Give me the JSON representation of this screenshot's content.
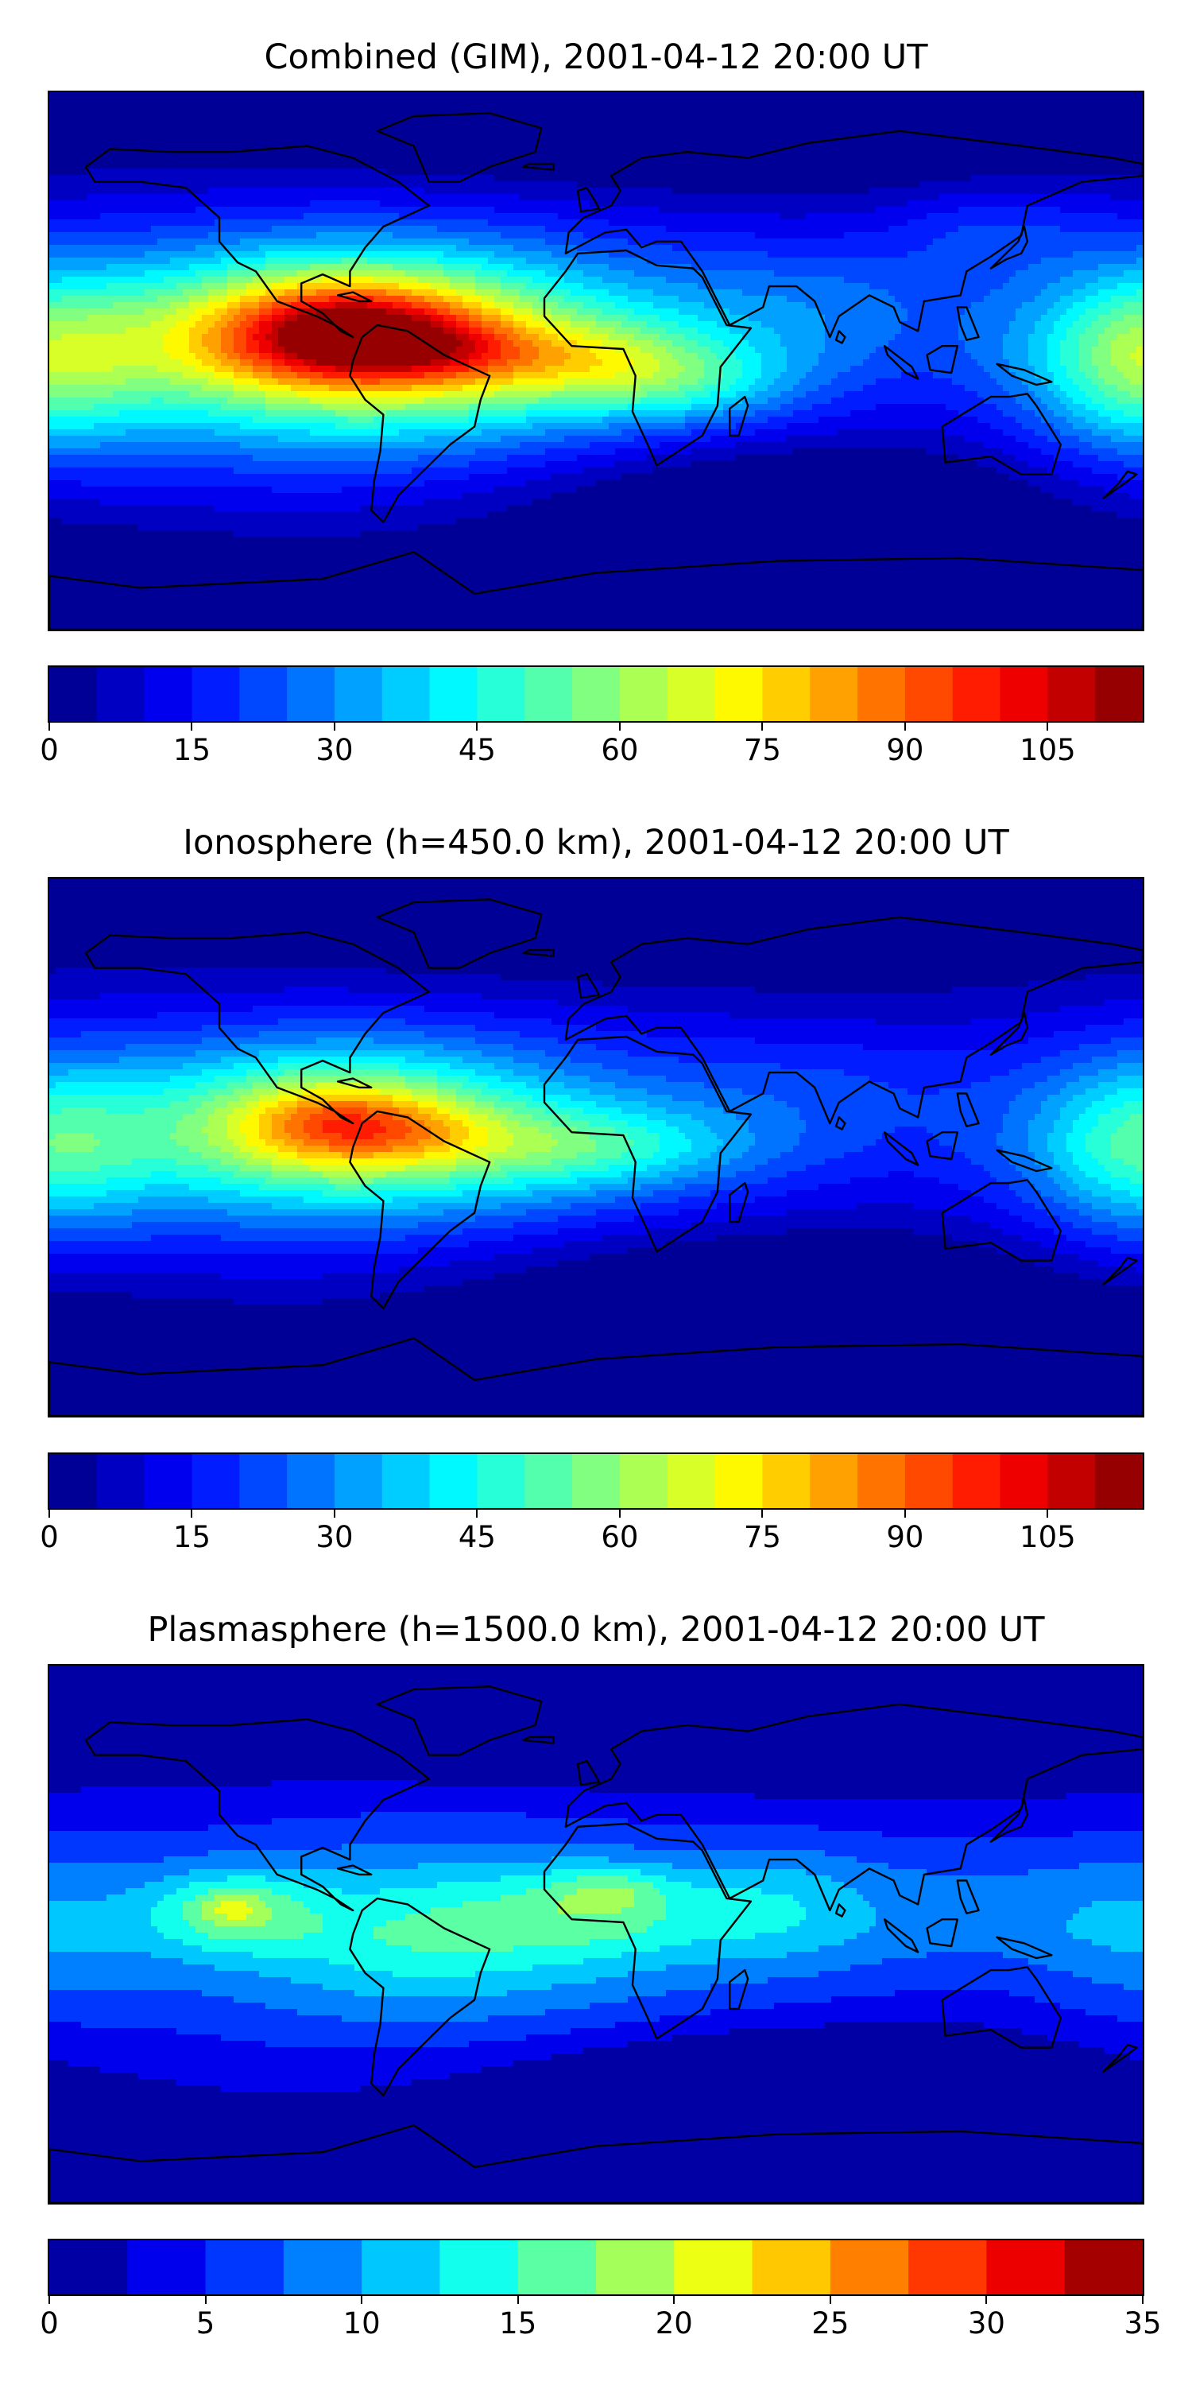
{
  "panels": [
    {
      "title": "Combined (GIM), 2001-04-12 20:00 UT",
      "colorbar": {
        "min": 0,
        "max": 115,
        "step": 5,
        "ticks": [
          "0",
          "15",
          "30",
          "45",
          "60",
          "75",
          "90",
          "105"
        ],
        "tick_values": [
          0,
          15,
          30,
          45,
          60,
          75,
          90,
          105
        ]
      },
      "blobs": [
        {
          "lon": -75,
          "lat": 5,
          "rx": 115,
          "ry": 40,
          "v": 35
        },
        {
          "lon": -80,
          "lat": 8,
          "rx": 70,
          "ry": 26,
          "v": 45
        },
        {
          "lon": -85,
          "lat": 10,
          "rx": 40,
          "ry": 16,
          "v": 30
        },
        {
          "lon": -80,
          "lat": 8,
          "rx": 15,
          "ry": 8,
          "v": 15
        },
        {
          "lon": -55,
          "lat": 5,
          "rx": 25,
          "ry": 10,
          "v": 12
        },
        {
          "lon": 0,
          "lat": 0,
          "rx": 50,
          "ry": 14,
          "v": 24
        },
        {
          "lon": 30,
          "lat": -10,
          "rx": 35,
          "ry": 12,
          "v": 14
        },
        {
          "lon": 80,
          "lat": 20,
          "rx": 60,
          "ry": 22,
          "v": 12
        },
        {
          "lon": 178,
          "lat": 0,
          "rx": 35,
          "ry": 30,
          "v": 32
        },
        {
          "lon": 130,
          "lat": 45,
          "rx": 35,
          "ry": 15,
          "v": 10
        },
        {
          "lon": 60,
          "lat": -45,
          "rx": 90,
          "ry": 20,
          "v": -14
        },
        {
          "lon": 90,
          "lat": -75,
          "rx": 200,
          "ry": 18,
          "v": -10
        },
        {
          "lon": 30,
          "lat": 75,
          "rx": 150,
          "ry": 20,
          "v": -8
        }
      ]
    },
    {
      "title": "Ionosphere  (h=450.0 km), 2001-04-12 20:00 UT",
      "colorbar": {
        "min": 0,
        "max": 115,
        "step": 5,
        "ticks": [
          "0",
          "15",
          "30",
          "45",
          "60",
          "75",
          "90",
          "105"
        ],
        "tick_values": [
          0,
          15,
          30,
          45,
          60,
          75,
          90,
          105
        ]
      },
      "blobs": [
        {
          "lon": -80,
          "lat": 5,
          "rx": 110,
          "ry": 35,
          "v": 30
        },
        {
          "lon": -85,
          "lat": 8,
          "rx": 60,
          "ry": 24,
          "v": 30
        },
        {
          "lon": -85,
          "lat": 8,
          "rx": 30,
          "ry": 13,
          "v": 22
        },
        {
          "lon": -55,
          "lat": 5,
          "rx": 25,
          "ry": 10,
          "v": 8
        },
        {
          "lon": 0,
          "lat": 0,
          "rx": 50,
          "ry": 14,
          "v": 20
        },
        {
          "lon": 80,
          "lat": 20,
          "rx": 60,
          "ry": 20,
          "v": 8
        },
        {
          "lon": 178,
          "lat": 0,
          "rx": 35,
          "ry": 30,
          "v": 26
        },
        {
          "lon": 60,
          "lat": -45,
          "rx": 100,
          "ry": 22,
          "v": -12
        },
        {
          "lon": 90,
          "lat": -70,
          "rx": 200,
          "ry": 20,
          "v": -10
        },
        {
          "lon": 30,
          "lat": 75,
          "rx": 150,
          "ry": 20,
          "v": -8
        }
      ]
    },
    {
      "title": "Plasmasphere (h=1500.0 km), 2001-04-12 20:00 UT",
      "colorbar": {
        "min": 0,
        "max": 35,
        "step": 2.5,
        "ticks": [
          "0",
          "5",
          "10",
          "15",
          "20",
          "25",
          "30",
          "35"
        ],
        "tick_values": [
          0,
          5,
          10,
          15,
          20,
          25,
          30,
          35
        ]
      },
      "blobs": [
        {
          "lon": -50,
          "lat": 0,
          "rx": 110,
          "ry": 40,
          "v": 8
        },
        {
          "lon": -120,
          "lat": 8,
          "rx": 28,
          "ry": 14,
          "v": 8
        },
        {
          "lon": -120,
          "lat": 9,
          "rx": 10,
          "ry": 5,
          "v": 4
        },
        {
          "lon": -60,
          "lat": 0,
          "rx": 40,
          "ry": 20,
          "v": 3
        },
        {
          "lon": 0,
          "lat": 8,
          "rx": 40,
          "ry": 16,
          "v": 6
        },
        {
          "lon": 5,
          "lat": 15,
          "rx": 18,
          "ry": 7,
          "v": 4
        },
        {
          "lon": 60,
          "lat": 10,
          "rx": 30,
          "ry": 20,
          "v": 4
        },
        {
          "lon": 120,
          "lat": 10,
          "rx": 70,
          "ry": 25,
          "v": 4
        },
        {
          "lon": 178,
          "lat": 0,
          "rx": 35,
          "ry": 30,
          "v": 3
        },
        {
          "lon": 60,
          "lat": -50,
          "rx": 90,
          "ry": 18,
          "v": -6
        },
        {
          "lon": 90,
          "lat": -75,
          "rx": 200,
          "ry": 15,
          "v": -3
        },
        {
          "lon": 30,
          "lat": 75,
          "rx": 150,
          "ry": 20,
          "v": -6
        }
      ]
    }
  ],
  "continents": [
    {
      "name": "north-america",
      "pts": [
        [
          -168,
          65
        ],
        [
          -160,
          71
        ],
        [
          -140,
          70
        ],
        [
          -120,
          70
        ],
        [
          -95,
          72
        ],
        [
          -80,
          68
        ],
        [
          -65,
          60
        ],
        [
          -55,
          52
        ],
        [
          -70,
          45
        ],
        [
          -76,
          38
        ],
        [
          -81,
          30
        ],
        [
          -81,
          25
        ],
        [
          -90,
          29
        ],
        [
          -97,
          26
        ],
        [
          -97,
          20
        ],
        [
          -90,
          16
        ],
        [
          -84,
          10
        ],
        [
          -80,
          8
        ],
        [
          -86,
          12
        ],
        [
          -92,
          15
        ],
        [
          -105,
          20
        ],
        [
          -112,
          30
        ],
        [
          -118,
          33
        ],
        [
          -124,
          40
        ],
        [
          -124,
          48
        ],
        [
          -135,
          58
        ],
        [
          -150,
          60
        ],
        [
          -165,
          60
        ]
      ]
    },
    {
      "name": "greenland",
      "pts": [
        [
          -55,
          60
        ],
        [
          -45,
          60
        ],
        [
          -35,
          65
        ],
        [
          -20,
          70
        ],
        [
          -18,
          78
        ],
        [
          -35,
          83
        ],
        [
          -60,
          82
        ],
        [
          -72,
          77
        ],
        [
          -60,
          72
        ]
      ]
    },
    {
      "name": "south-america",
      "pts": [
        [
          -77,
          8
        ],
        [
          -72,
          12
        ],
        [
          -62,
          10
        ],
        [
          -50,
          2
        ],
        [
          -35,
          -5
        ],
        [
          -38,
          -13
        ],
        [
          -40,
          -22
        ],
        [
          -48,
          -28
        ],
        [
          -58,
          -38
        ],
        [
          -65,
          -45
        ],
        [
          -70,
          -54
        ],
        [
          -74,
          -50
        ],
        [
          -73,
          -40
        ],
        [
          -71,
          -30
        ],
        [
          -70,
          -18
        ],
        [
          -76,
          -13
        ],
        [
          -81,
          -5
        ],
        [
          -80,
          0
        ]
      ]
    },
    {
      "name": "europe-asia",
      "pts": [
        [
          -10,
          36
        ],
        [
          -9,
          43
        ],
        [
          -4,
          48
        ],
        [
          5,
          52
        ],
        [
          8,
          57
        ],
        [
          5,
          62
        ],
        [
          15,
          68
        ],
        [
          30,
          70
        ],
        [
          50,
          68
        ],
        [
          70,
          73
        ],
        [
          100,
          77
        ],
        [
          140,
          72
        ],
        [
          170,
          68
        ],
        [
          180,
          66
        ],
        [
          180,
          62
        ],
        [
          160,
          60
        ],
        [
          142,
          52
        ],
        [
          140,
          42
        ],
        [
          130,
          35
        ],
        [
          122,
          30
        ],
        [
          120,
          22
        ],
        [
          108,
          20
        ],
        [
          106,
          10
        ],
        [
          100,
          13
        ],
        [
          98,
          18
        ],
        [
          90,
          22
        ],
        [
          80,
          15
        ],
        [
          77,
          8
        ],
        [
          72,
          20
        ],
        [
          66,
          25
        ],
        [
          57,
          25
        ],
        [
          55,
          18
        ],
        [
          44,
          12
        ],
        [
          35,
          30
        ],
        [
          28,
          40
        ],
        [
          20,
          40
        ],
        [
          15,
          38
        ],
        [
          10,
          44
        ],
        [
          3,
          43
        ]
      ]
    },
    {
      "name": "africa",
      "pts": [
        [
          -17,
          15
        ],
        [
          -17,
          21
        ],
        [
          -10,
          30
        ],
        [
          -6,
          36
        ],
        [
          10,
          37
        ],
        [
          20,
          32
        ],
        [
          32,
          31
        ],
        [
          35,
          28
        ],
        [
          43,
          12
        ],
        [
          51,
          11
        ],
        [
          41,
          -2
        ],
        [
          40,
          -15
        ],
        [
          35,
          -25
        ],
        [
          20,
          -35
        ],
        [
          17,
          -28
        ],
        [
          12,
          -17
        ],
        [
          13,
          -5
        ],
        [
          9,
          4
        ],
        [
          -8,
          5
        ]
      ]
    },
    {
      "name": "australia",
      "pts": [
        [
          114,
          -22
        ],
        [
          115,
          -34
        ],
        [
          130,
          -32
        ],
        [
          140,
          -38
        ],
        [
          150,
          -38
        ],
        [
          153,
          -28
        ],
        [
          145,
          -15
        ],
        [
          142,
          -11
        ],
        [
          136,
          -12
        ],
        [
          130,
          -12
        ],
        [
          122,
          -17
        ]
      ]
    },
    {
      "name": "antarctica",
      "pts": [
        [
          -180,
          -72
        ],
        [
          -150,
          -76
        ],
        [
          -90,
          -73
        ],
        [
          -60,
          -64
        ],
        [
          -57,
          -66
        ],
        [
          -40,
          -78
        ],
        [
          0,
          -71
        ],
        [
          60,
          -67
        ],
        [
          120,
          -66
        ],
        [
          180,
          -70
        ],
        [
          180,
          -90
        ],
        [
          -180,
          -90
        ]
      ]
    },
    {
      "name": "madagascar",
      "pts": [
        [
          44,
          -25
        ],
        [
          47,
          -25
        ],
        [
          50,
          -15
        ],
        [
          49,
          -12
        ],
        [
          44,
          -16
        ]
      ]
    },
    {
      "name": "borneo",
      "pts": [
        [
          109,
          2
        ],
        [
          114,
          5
        ],
        [
          119,
          5
        ],
        [
          117,
          -4
        ],
        [
          110,
          -3
        ]
      ]
    },
    {
      "name": "sumatra",
      "pts": [
        [
          95,
          5
        ],
        [
          104,
          -2
        ],
        [
          106,
          -6
        ],
        [
          102,
          -4
        ],
        [
          96,
          2
        ]
      ]
    },
    {
      "name": "new-guinea",
      "pts": [
        [
          132,
          -1
        ],
        [
          141,
          -3
        ],
        [
          150,
          -7
        ],
        [
          145,
          -8
        ],
        [
          137,
          -5
        ]
      ]
    },
    {
      "name": "japan",
      "pts": [
        [
          130,
          31
        ],
        [
          135,
          34
        ],
        [
          140,
          36
        ],
        [
          142,
          40
        ],
        [
          141,
          45
        ],
        [
          139,
          40
        ],
        [
          133,
          34
        ]
      ]
    },
    {
      "name": "uk",
      "pts": [
        [
          -5,
          50
        ],
        [
          1,
          51
        ],
        [
          0,
          53
        ],
        [
          -3,
          58
        ],
        [
          -6,
          57
        ]
      ]
    },
    {
      "name": "new-zealand",
      "pts": [
        [
          167,
          -46
        ],
        [
          174,
          -41
        ],
        [
          178,
          -38
        ],
        [
          175,
          -37
        ],
        [
          172,
          -41
        ]
      ]
    },
    {
      "name": "cuba",
      "pts": [
        [
          -85,
          22
        ],
        [
          -80,
          23
        ],
        [
          -74,
          20
        ],
        [
          -78,
          20
        ]
      ]
    },
    {
      "name": "philippines",
      "pts": [
        [
          119,
          18
        ],
        [
          122,
          18
        ],
        [
          126,
          8
        ],
        [
          122,
          7
        ],
        [
          120,
          12
        ]
      ]
    },
    {
      "name": "indian-subcontinent-sri-lanka",
      "pts": [
        [
          80,
          10
        ],
        [
          82,
          8
        ],
        [
          81,
          6
        ],
        [
          79,
          7
        ]
      ]
    },
    {
      "name": "iceland",
      "pts": [
        [
          -24,
          65
        ],
        [
          -14,
          64
        ],
        [
          -14,
          66
        ],
        [
          -22,
          66
        ]
      ]
    }
  ]
}
